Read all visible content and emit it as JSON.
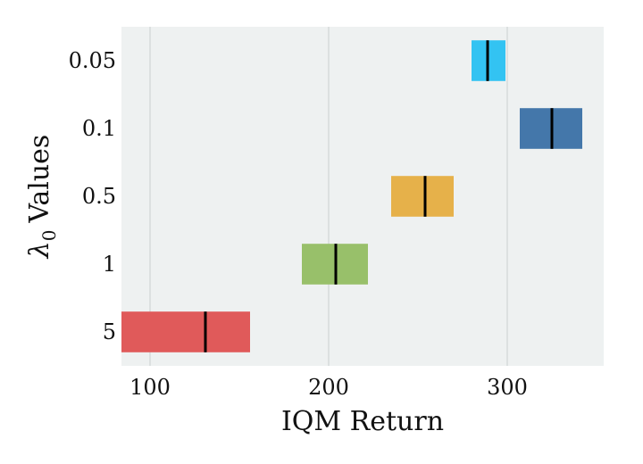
{
  "chart_data": {
    "type": "interval",
    "xlabel": "IQM Return",
    "ylabel": "λ0 Values",
    "ylabel_parts": {
      "symbol": "λ",
      "subscript": "0",
      "text": "Values"
    },
    "xlim": [
      84,
      354
    ],
    "xticks": [
      100,
      200,
      300
    ],
    "grid": true,
    "categories": [
      "0.05",
      "0.1",
      "0.5",
      "1",
      "5"
    ],
    "intervals": [
      {
        "category": "0.05",
        "low": 280,
        "high": 299,
        "point": 289,
        "color": "#33c3f2"
      },
      {
        "category": "0.1",
        "low": 307,
        "high": 342,
        "point": 325,
        "color": "#4477aa"
      },
      {
        "category": "0.5",
        "low": 235,
        "high": 270,
        "point": 254,
        "color": "#e6b14a"
      },
      {
        "category": "1",
        "low": 185,
        "high": 222,
        "point": 204,
        "color": "#98c06a"
      },
      {
        "category": "5",
        "low": 84,
        "high": 156,
        "point": 131,
        "color": "#e05a5a"
      }
    ],
    "colors": {
      "plot_bg": "#eef1f1",
      "grid": "#d6dada",
      "median_line": "#000000"
    }
  }
}
